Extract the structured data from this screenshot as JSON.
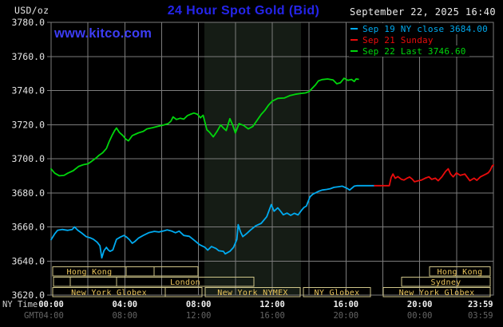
{
  "colors": {
    "background": "#000000",
    "grid": "#7c7c7c",
    "band": "#151c15",
    "axis_text": "#e4e4e4",
    "ny_time_text": "#f0f0f0",
    "gmt_text": "#646464",
    "side_label_text": "#cfcfcf",
    "session_border": "#cec489",
    "session_text": "#e9c45c",
    "cyan": "#00aaef",
    "red": "#ea0c0c",
    "green": "#00d60c",
    "title_blue": "#2525ea",
    "url_blue": "#3d3df5",
    "date_text": "#ececec"
  },
  "header": {
    "unit": "USD/oz",
    "title": "24 Hour Spot Gold (Bid)",
    "url": "www.kitco.com",
    "timestamp": "September 22, 2025 16:40"
  },
  "legend": {
    "items": [
      {
        "label": "Sep 19 NY close 3684.00",
        "color_key": "cyan"
      },
      {
        "label": "Sep 21 Sunday",
        "color_key": "red"
      },
      {
        "label": "Sep 22 Last 3746.60",
        "color_key": "green"
      }
    ]
  },
  "axes": {
    "ny_time_label": "NY Time",
    "gmt_label": "GMT"
  },
  "chart_data": {
    "type": "line",
    "title": "24 Hour Spot Gold (Bid)",
    "y_unit": "USD/oz",
    "ylim": [
      3620,
      3780
    ],
    "y_tick_step": 20,
    "y_ticks": [
      3780,
      3760,
      3740,
      3720,
      3700,
      3680,
      3660,
      3640,
      3620
    ],
    "x_hours_range": [
      0,
      24
    ],
    "grid": true,
    "x_ticks": [
      {
        "h": 0,
        "ny": "00:00",
        "gmt": "04:00"
      },
      {
        "h": 4,
        "ny": "04:00",
        "gmt": "08:00"
      },
      {
        "h": 8,
        "ny": "08:00",
        "gmt": "12:00"
      },
      {
        "h": 12,
        "ny": "12:00",
        "gmt": "16:00"
      },
      {
        "h": 16,
        "ny": "16:00",
        "gmt": "20:00"
      },
      {
        "h": 20,
        "ny": "20:00",
        "gmt": "00:00"
      },
      {
        "h": 23.3,
        "ny": "23:59",
        "gmt": "03:59"
      }
    ],
    "band": {
      "from_h": 8.32,
      "to_h": 13.56,
      "meaning": "New York NYMEX session shading"
    },
    "series": [
      {
        "id": "sep19",
        "name": "Sep 19 NY close 3684.00",
        "color_key": "cyan",
        "points": [
          [
            0,
            3652.5
          ],
          [
            0.2,
            3656
          ],
          [
            0.35,
            3658
          ],
          [
            0.6,
            3658.5
          ],
          [
            0.9,
            3658
          ],
          [
            1.15,
            3658.5
          ],
          [
            1.27,
            3660
          ],
          [
            1.45,
            3658
          ],
          [
            1.65,
            3656.5
          ],
          [
            1.9,
            3654.3
          ],
          [
            2.15,
            3653.5
          ],
          [
            2.3,
            3652.7
          ],
          [
            2.5,
            3651
          ],
          [
            2.65,
            3648.9
          ],
          [
            2.75,
            3641.8
          ],
          [
            2.87,
            3646
          ],
          [
            3,
            3648
          ],
          [
            3.1,
            3646.5
          ],
          [
            3.2,
            3645.7
          ],
          [
            3.35,
            3646.5
          ],
          [
            3.55,
            3652.7
          ],
          [
            3.75,
            3654
          ],
          [
            3.95,
            3655
          ],
          [
            4.1,
            3654
          ],
          [
            4.25,
            3652.5
          ],
          [
            4.4,
            3650.4
          ],
          [
            4.55,
            3651.5
          ],
          [
            4.75,
            3653.5
          ],
          [
            5,
            3655
          ],
          [
            5.3,
            3656.6
          ],
          [
            5.6,
            3657.4
          ],
          [
            5.85,
            3657
          ],
          [
            6.15,
            3657.8
          ],
          [
            6.3,
            3658.2
          ],
          [
            6.55,
            3657.5
          ],
          [
            6.75,
            3656.6
          ],
          [
            6.95,
            3657.5
          ],
          [
            7.2,
            3655
          ],
          [
            7.5,
            3654.5
          ],
          [
            7.8,
            3651.9
          ],
          [
            8.05,
            3649.6
          ],
          [
            8.35,
            3648
          ],
          [
            8.5,
            3646.4
          ],
          [
            8.7,
            3648.5
          ],
          [
            8.95,
            3647.3
          ],
          [
            9.1,
            3646
          ],
          [
            9.35,
            3645.7
          ],
          [
            9.45,
            3644.2
          ],
          [
            9.7,
            3645.7
          ],
          [
            9.9,
            3648
          ],
          [
            10.08,
            3652.7
          ],
          [
            10.15,
            3661.3
          ],
          [
            10.28,
            3657
          ],
          [
            10.4,
            3654.3
          ],
          [
            10.6,
            3656
          ],
          [
            10.8,
            3658
          ],
          [
            11.1,
            3660.6
          ],
          [
            11.4,
            3662.1
          ],
          [
            11.7,
            3666
          ],
          [
            11.95,
            3673.1
          ],
          [
            12.1,
            3669.2
          ],
          [
            12.3,
            3671.2
          ],
          [
            12.45,
            3669.2
          ],
          [
            12.6,
            3667.1
          ],
          [
            12.8,
            3668.1
          ],
          [
            13,
            3666.8
          ],
          [
            13.2,
            3668
          ],
          [
            13.4,
            3667
          ],
          [
            13.6,
            3669.9
          ],
          [
            13.72,
            3671.4
          ],
          [
            13.85,
            3672.2
          ],
          [
            14.05,
            3677.7
          ],
          [
            14.2,
            3679.2
          ],
          [
            14.35,
            3680
          ],
          [
            14.5,
            3680.8
          ],
          [
            14.7,
            3681.6
          ],
          [
            14.95,
            3682
          ],
          [
            15.15,
            3682.4
          ],
          [
            15.35,
            3683.2
          ],
          [
            15.6,
            3683.6
          ],
          [
            15.8,
            3683.9
          ],
          [
            16.05,
            3682.7
          ],
          [
            16.2,
            3681.6
          ],
          [
            16.45,
            3683.9
          ],
          [
            16.6,
            3684.2
          ],
          [
            17.55,
            3684.2
          ]
        ]
      },
      {
        "id": "sep21",
        "name": "Sep 21 Sunday",
        "color_key": "red",
        "points": [
          [
            17.55,
            3684.2
          ],
          [
            18.35,
            3684.2
          ],
          [
            18.45,
            3689
          ],
          [
            18.55,
            3691
          ],
          [
            18.67,
            3688.5
          ],
          [
            18.82,
            3689.5
          ],
          [
            19,
            3688
          ],
          [
            19.15,
            3687.5
          ],
          [
            19.3,
            3688.5
          ],
          [
            19.45,
            3689.3
          ],
          [
            19.6,
            3688
          ],
          [
            19.72,
            3686.5
          ],
          [
            19.9,
            3687
          ],
          [
            20.1,
            3687.5
          ],
          [
            20.3,
            3688.6
          ],
          [
            20.5,
            3689.4
          ],
          [
            20.65,
            3687.9
          ],
          [
            20.85,
            3688.6
          ],
          [
            21,
            3687.1
          ],
          [
            21.2,
            3689.4
          ],
          [
            21.4,
            3692.5
          ],
          [
            21.55,
            3694.1
          ],
          [
            21.68,
            3691
          ],
          [
            21.82,
            3689.4
          ],
          [
            22,
            3691.7
          ],
          [
            22.2,
            3690.2
          ],
          [
            22.45,
            3691
          ],
          [
            22.72,
            3687.1
          ],
          [
            22.95,
            3688.6
          ],
          [
            23.1,
            3687.3
          ],
          [
            23.3,
            3689.4
          ],
          [
            23.45,
            3690.2
          ],
          [
            23.6,
            3691
          ],
          [
            23.72,
            3691.7
          ],
          [
            23.83,
            3693.3
          ],
          [
            23.93,
            3695.7
          ],
          [
            24,
            3696.3
          ]
        ]
      },
      {
        "id": "sep22",
        "name": "Sep 22 Last 3746.60",
        "color_key": "green",
        "points": [
          [
            0,
            3694
          ],
          [
            0.2,
            3691.5
          ],
          [
            0.45,
            3690
          ],
          [
            0.7,
            3690.2
          ],
          [
            0.9,
            3691.5
          ],
          [
            1.2,
            3693
          ],
          [
            1.5,
            3695.5
          ],
          [
            1.75,
            3696.5
          ],
          [
            2,
            3697
          ],
          [
            2.2,
            3698.5
          ],
          [
            2.45,
            3700.5
          ],
          [
            2.6,
            3702
          ],
          [
            2.8,
            3703.5
          ],
          [
            3,
            3706
          ],
          [
            3.15,
            3710
          ],
          [
            3.3,
            3713.5
          ],
          [
            3.45,
            3716.5
          ],
          [
            3.55,
            3718
          ],
          [
            3.7,
            3715.5
          ],
          [
            3.9,
            3713.5
          ],
          [
            4.05,
            3711.5
          ],
          [
            4.2,
            3710.5
          ],
          [
            4.4,
            3713.5
          ],
          [
            4.6,
            3714.5
          ],
          [
            4.75,
            3715.2
          ],
          [
            5,
            3716
          ],
          [
            5.2,
            3717.5
          ],
          [
            5.5,
            3718.2
          ],
          [
            5.8,
            3719
          ],
          [
            6.1,
            3719.8
          ],
          [
            6.35,
            3720.6
          ],
          [
            6.5,
            3722
          ],
          [
            6.62,
            3724.5
          ],
          [
            6.8,
            3723
          ],
          [
            7,
            3723.7
          ],
          [
            7.2,
            3723.2
          ],
          [
            7.4,
            3725.3
          ],
          [
            7.55,
            3726
          ],
          [
            7.75,
            3726.8
          ],
          [
            7.95,
            3726
          ],
          [
            8.1,
            3724
          ],
          [
            8.25,
            3725.5
          ],
          [
            8.45,
            3717
          ],
          [
            8.6,
            3715.5
          ],
          [
            8.8,
            3712.8
          ],
          [
            9,
            3716
          ],
          [
            9.2,
            3719.8
          ],
          [
            9.35,
            3718
          ],
          [
            9.5,
            3716.5
          ],
          [
            9.7,
            3723.5
          ],
          [
            9.85,
            3719.8
          ],
          [
            10,
            3715.1
          ],
          [
            10.2,
            3720.6
          ],
          [
            10.45,
            3719.5
          ],
          [
            10.7,
            3717.5
          ],
          [
            10.95,
            3719
          ],
          [
            11.2,
            3722.9
          ],
          [
            11.4,
            3726
          ],
          [
            11.6,
            3728.4
          ],
          [
            11.8,
            3731.5
          ],
          [
            12,
            3733.8
          ],
          [
            12.3,
            3735.4
          ],
          [
            12.65,
            3735.6
          ],
          [
            12.95,
            3737
          ],
          [
            13.25,
            3737.8
          ],
          [
            13.55,
            3738.3
          ],
          [
            13.8,
            3738.6
          ],
          [
            14,
            3739.4
          ],
          [
            14.2,
            3741.7
          ],
          [
            14.35,
            3743.3
          ],
          [
            14.5,
            3745.6
          ],
          [
            14.7,
            3746.4
          ],
          [
            15,
            3746.8
          ],
          [
            15.3,
            3746.2
          ],
          [
            15.5,
            3744
          ],
          [
            15.7,
            3744.6
          ],
          [
            15.9,
            3747.2
          ],
          [
            16.1,
            3746
          ],
          [
            16.3,
            3746.5
          ],
          [
            16.45,
            3745.3
          ],
          [
            16.55,
            3746.8
          ],
          [
            16.67,
            3746.6
          ]
        ]
      }
    ],
    "sessions": [
      {
        "row": 0,
        "from": 66,
        "to": 158,
        "label": "Hong Kong"
      },
      {
        "row": 0,
        "from": 158,
        "to": 193,
        "label": ""
      },
      {
        "row": 0,
        "from": 193,
        "to": 248,
        "label": ""
      },
      {
        "row": 0,
        "from": 538,
        "to": 614,
        "label": "Hong Kong"
      },
      {
        "row": 1,
        "from": 67,
        "to": 88,
        "label": ""
      },
      {
        "row": 1,
        "from": 88,
        "to": 146,
        "label": ""
      },
      {
        "row": 1,
        "from": 146,
        "to": 318,
        "label": "London"
      },
      {
        "row": 1,
        "from": 503,
        "to": 614,
        "label": "Sydney"
      },
      {
        "row": 2,
        "from": 66,
        "to": 207,
        "label": "New York Globex"
      },
      {
        "row": 2,
        "from": 207,
        "to": 253,
        "label": ""
      },
      {
        "row": 2,
        "from": 257,
        "to": 376,
        "label": "New York NYMEX"
      },
      {
        "row": 2,
        "from": 380,
        "to": 464,
        "label": "NY Globex"
      },
      {
        "row": 2,
        "from": 480,
        "to": 614,
        "label": "New York Globex"
      }
    ]
  }
}
